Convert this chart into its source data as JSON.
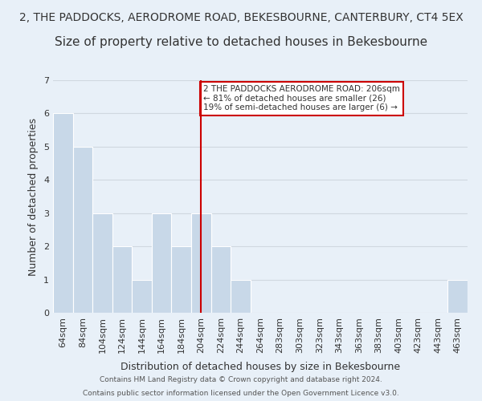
{
  "title_line1": "2, THE PADDOCKS, AERODROME ROAD, BEKESBOURNE, CANTERBURY, CT4 5EX",
  "title_line2": "Size of property relative to detached houses in Bekesbourne",
  "xlabel": "Distribution of detached houses by size in Bekesbourne",
  "ylabel": "Number of detached properties",
  "footer_line1": "Contains HM Land Registry data © Crown copyright and database right 2024.",
  "footer_line2": "Contains public sector information licensed under the Open Government Licence v3.0.",
  "bin_labels": [
    "64sqm",
    "84sqm",
    "104sqm",
    "124sqm",
    "144sqm",
    "164sqm",
    "184sqm",
    "204sqm",
    "224sqm",
    "244sqm",
    "264sqm",
    "283sqm",
    "303sqm",
    "323sqm",
    "343sqm",
    "363sqm",
    "383sqm",
    "403sqm",
    "423sqm",
    "443sqm",
    "463sqm"
  ],
  "bar_values": [
    6,
    5,
    3,
    2,
    1,
    3,
    2,
    3,
    2,
    1,
    0,
    0,
    0,
    0,
    0,
    0,
    0,
    0,
    0,
    0,
    1
  ],
  "bar_color": "#c8d8e8",
  "bar_edge_color": "#ffffff",
  "grid_color": "#d0d8e0",
  "reference_line_x_label": "204sqm",
  "reference_line_color": "#cc0000",
  "annotation_text": "2 THE PADDOCKS AERODROME ROAD: 206sqm\n← 81% of detached houses are smaller (26)\n19% of semi-detached houses are larger (6) →",
  "annotation_box_color": "#ffffff",
  "annotation_border_color": "#cc0000",
  "ylim": [
    0,
    7
  ],
  "yticks": [
    0,
    1,
    2,
    3,
    4,
    5,
    6,
    7
  ],
  "background_color": "#e8f0f8",
  "title_fontsize": 10,
  "subtitle_fontsize": 11,
  "axis_label_fontsize": 9,
  "tick_fontsize": 8
}
